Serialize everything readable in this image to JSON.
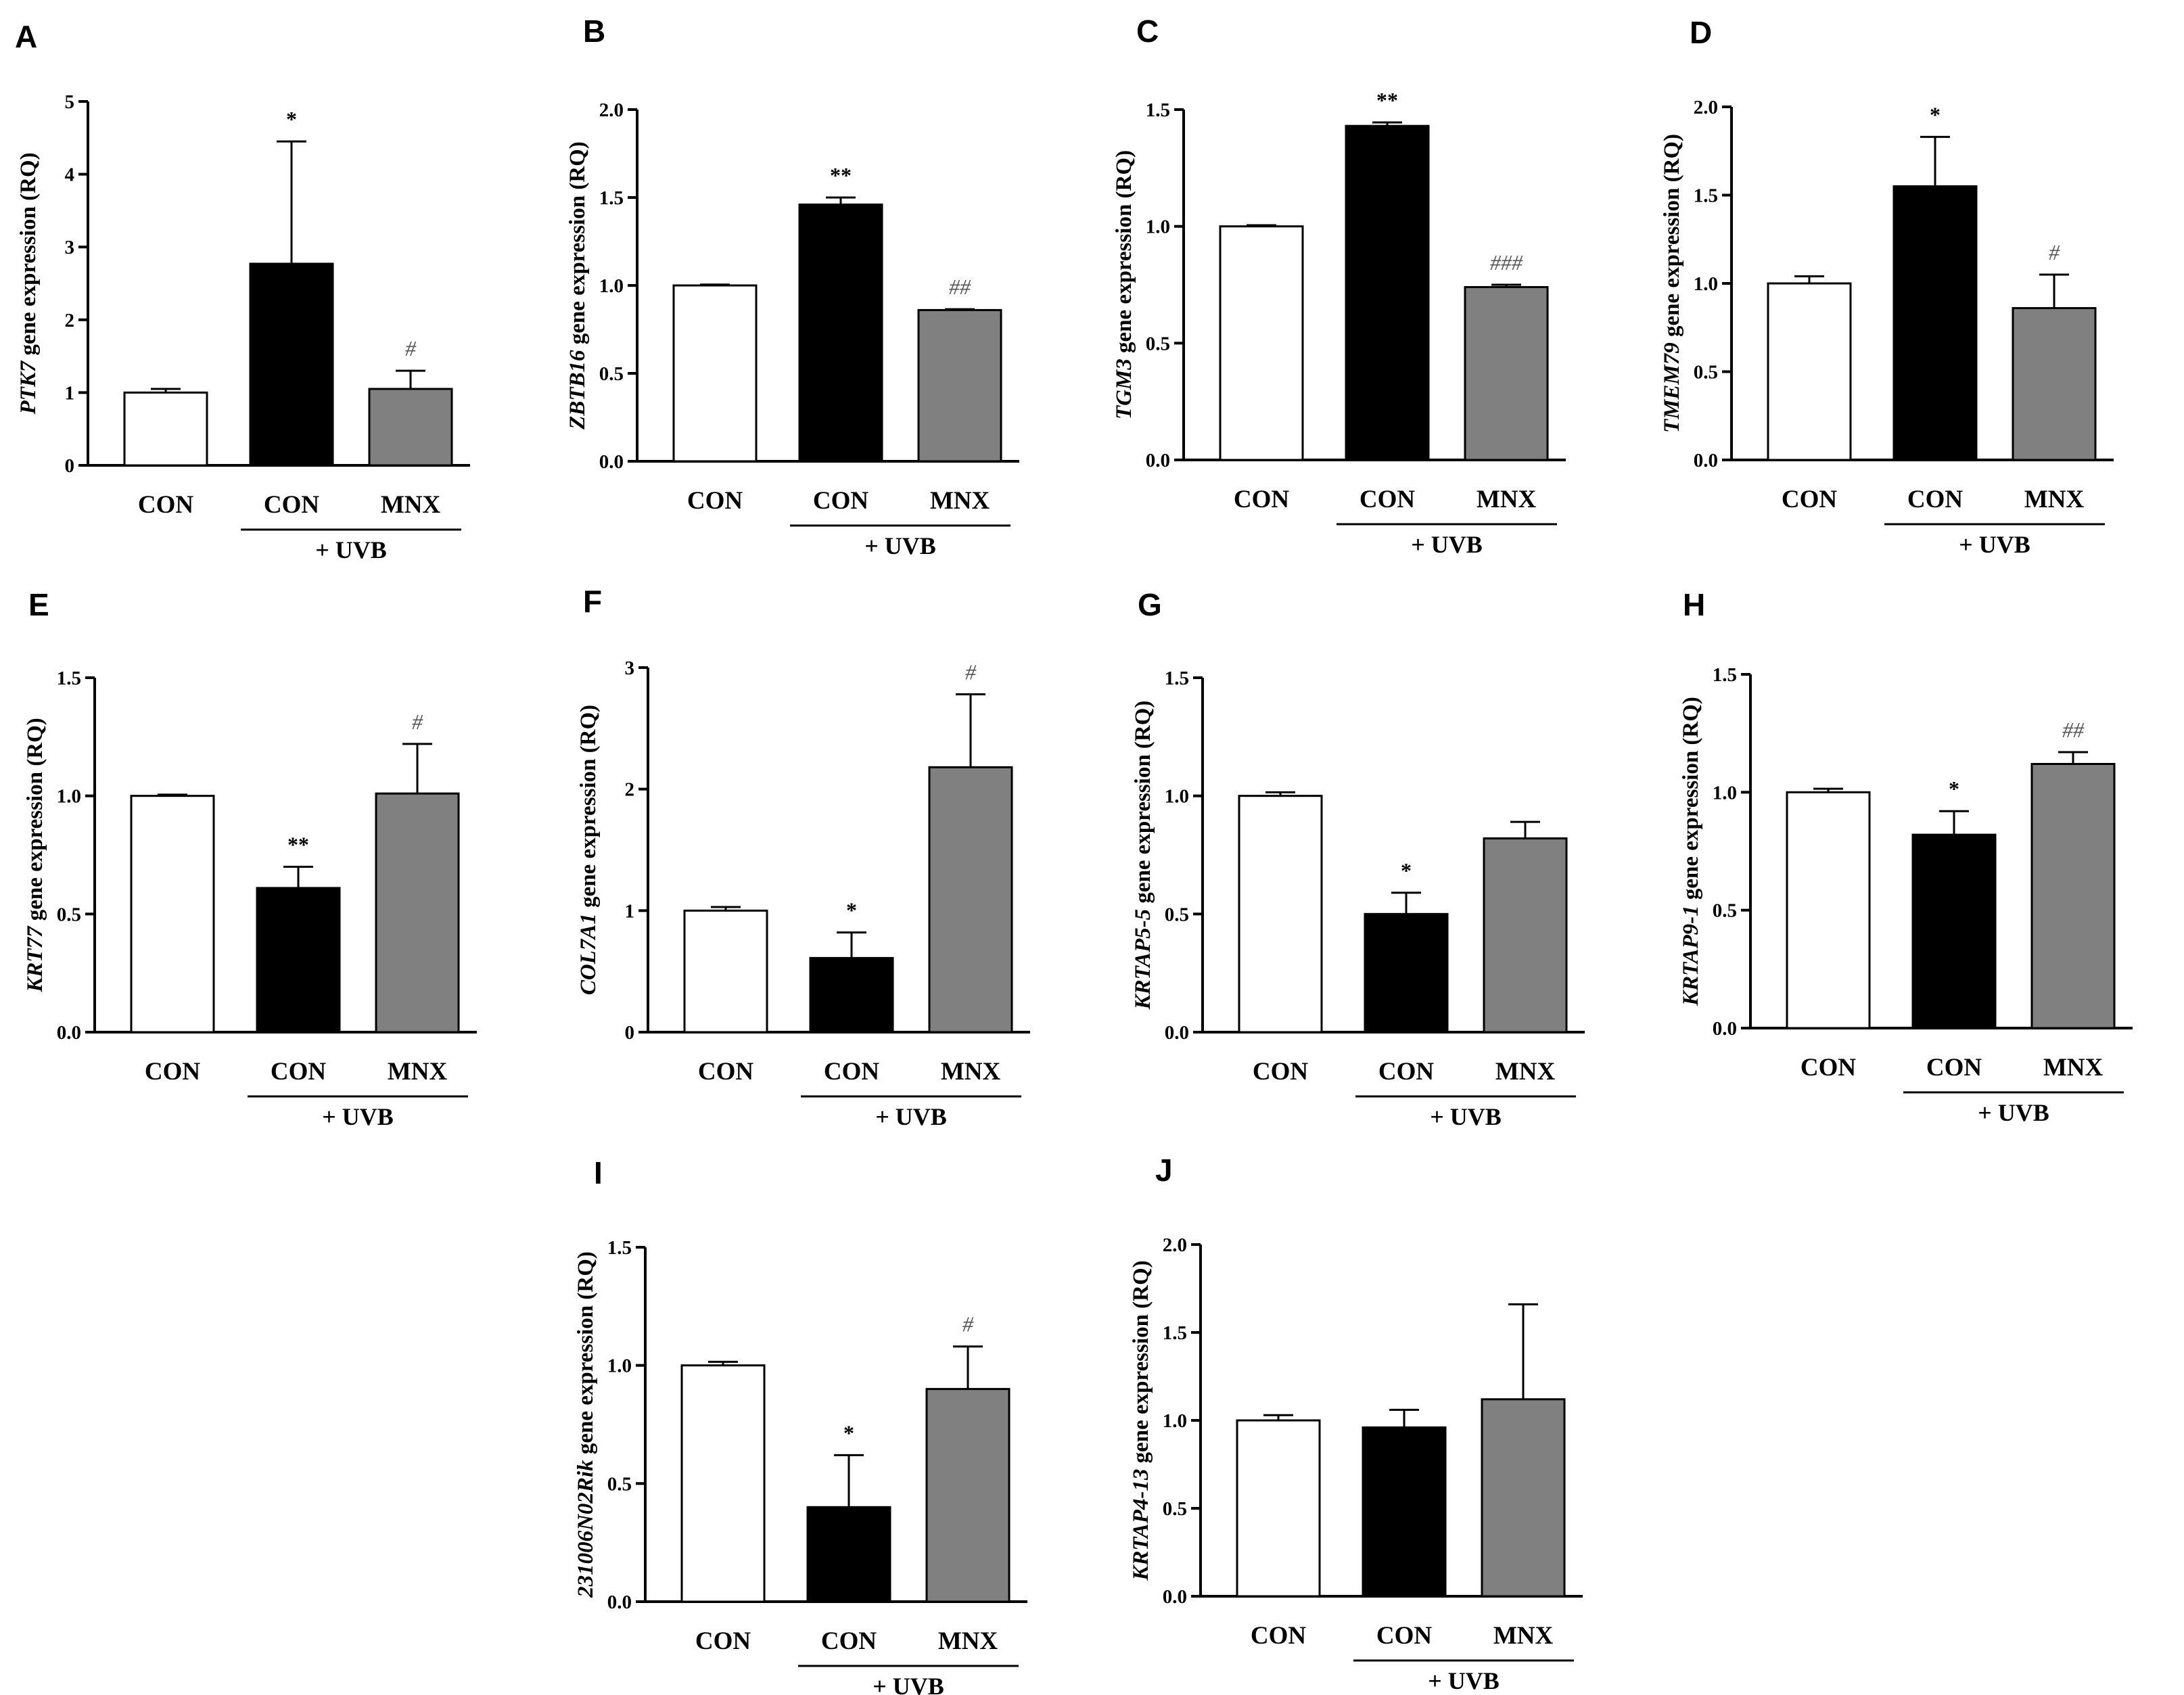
{
  "figure": {
    "group_label": "+ UVB",
    "ylabel_suffix": " gene expression (RQ)"
  },
  "colors": {
    "bar_fills": [
      "#ffffff",
      "#000000",
      "#808080"
    ],
    "axis": "#000000",
    "hash_marker": "#555555"
  },
  "chart_data": [
    {
      "panel": "A",
      "type": "bar",
      "gene": "PTK7",
      "ylabel": "PTK7 gene expression (RQ)",
      "categories": [
        "CON",
        "CON",
        "MNX"
      ],
      "values": [
        1.0,
        2.77,
        1.05
      ],
      "errors": [
        0.05,
        1.68,
        0.25
      ],
      "significance": [
        "",
        "*",
        "#"
      ],
      "ylim": [
        0,
        5
      ],
      "yticks": [
        "0",
        "1",
        "2",
        "3",
        "4",
        "5"
      ],
      "ytick_values": [
        0,
        1,
        2,
        3,
        4,
        5
      ]
    },
    {
      "panel": "B",
      "type": "bar",
      "gene": "ZBTB16",
      "ylabel": "ZBTB16 gene expression (RQ)",
      "categories": [
        "CON",
        "CON",
        "MNX"
      ],
      "values": [
        1.0,
        1.46,
        0.86
      ],
      "errors": [
        0.005,
        0.04,
        0.005
      ],
      "significance": [
        "",
        "**",
        "##"
      ],
      "ylim": [
        0,
        2.0
      ],
      "yticks": [
        "0.0",
        "0.5",
        "1.0",
        "1.5",
        "2.0"
      ],
      "ytick_values": [
        0,
        0.5,
        1.0,
        1.5,
        2.0
      ]
    },
    {
      "panel": "C",
      "type": "bar",
      "gene": "TGM3",
      "ylabel": "TGM3 gene expression (RQ)",
      "categories": [
        "CON",
        "CON",
        "MNX"
      ],
      "values": [
        1.0,
        1.43,
        0.74
      ],
      "errors": [
        0.005,
        0.015,
        0.01
      ],
      "significance": [
        "",
        "**",
        "###"
      ],
      "ylim": [
        0,
        1.5
      ],
      "yticks": [
        "0.0",
        "0.5",
        "1.0",
        "1.5"
      ],
      "ytick_values": [
        0,
        0.5,
        1.0,
        1.5
      ]
    },
    {
      "panel": "D",
      "type": "bar",
      "gene": "TMEM79",
      "ylabel": "TMEM79 gene expression (RQ)",
      "categories": [
        "CON",
        "CON",
        "MNX"
      ],
      "values": [
        1.0,
        1.55,
        0.86
      ],
      "errors": [
        0.04,
        0.28,
        0.19
      ],
      "significance": [
        "",
        "*",
        "#"
      ],
      "ylim": [
        0,
        2.0
      ],
      "yticks": [
        "0.0",
        "0.5",
        "1.0",
        "1.5",
        "2.0"
      ],
      "ytick_values": [
        0,
        0.5,
        1.0,
        1.5,
        2.0
      ]
    },
    {
      "panel": "E",
      "type": "bar",
      "gene": "KRT77",
      "ylabel": "KRT77 gene expression (RQ)",
      "categories": [
        "CON",
        "CON",
        "MNX"
      ],
      "values": [
        1.0,
        0.61,
        1.01
      ],
      "errors": [
        0.005,
        0.09,
        0.21
      ],
      "significance": [
        "",
        "**",
        "#"
      ],
      "ylim": [
        0,
        1.5
      ],
      "yticks": [
        "0.0",
        "0.5",
        "1.0",
        "1.5"
      ],
      "ytick_values": [
        0,
        0.5,
        1.0,
        1.5
      ]
    },
    {
      "panel": "F",
      "type": "bar",
      "gene": "COL7A1",
      "ylabel": "COL7A1 gene expression (RQ)",
      "categories": [
        "CON",
        "CON",
        "MNX"
      ],
      "values": [
        1.0,
        0.61,
        2.18
      ],
      "errors": [
        0.03,
        0.21,
        0.6
      ],
      "significance": [
        "",
        "*",
        "#"
      ],
      "ylim": [
        0,
        3
      ],
      "yticks": [
        "0",
        "1",
        "2",
        "3"
      ],
      "ytick_values": [
        0,
        1,
        2,
        3
      ]
    },
    {
      "panel": "G",
      "type": "bar",
      "gene": "KRTAP5-5",
      "ylabel": "KRTAP5-5 gene expression (RQ)",
      "categories": [
        "CON",
        "CON",
        "MNX"
      ],
      "values": [
        1.0,
        0.5,
        0.82
      ],
      "errors": [
        0.015,
        0.09,
        0.07
      ],
      "significance": [
        "",
        "*",
        ""
      ],
      "ylim": [
        0,
        1.5
      ],
      "yticks": [
        "0.0",
        "0.5",
        "1.0",
        "1.5"
      ],
      "ytick_values": [
        0,
        0.5,
        1.0,
        1.5
      ]
    },
    {
      "panel": "H",
      "type": "bar",
      "gene": "KRTAP9-1",
      "ylabel": "KRTAP9-1 gene expression (RQ)",
      "categories": [
        "CON",
        "CON",
        "MNX"
      ],
      "values": [
        1.0,
        0.82,
        1.12
      ],
      "errors": [
        0.015,
        0.1,
        0.05
      ],
      "significance": [
        "",
        "*",
        "##"
      ],
      "ylim": [
        0,
        1.5
      ],
      "yticks": [
        "0.0",
        "0.5",
        "1.0",
        "1.5"
      ],
      "ytick_values": [
        0,
        0.5,
        1.0,
        1.5
      ]
    },
    {
      "panel": "I",
      "type": "bar",
      "gene": "231006N02Rik",
      "ylabel": "231006N02Rik gene expression (RQ)",
      "categories": [
        "CON",
        "CON",
        "MNX"
      ],
      "values": [
        1.0,
        0.4,
        0.9
      ],
      "errors": [
        0.015,
        0.22,
        0.18
      ],
      "significance": [
        "",
        "*",
        "#"
      ],
      "ylim": [
        0,
        1.5
      ],
      "yticks": [
        "0.0",
        "0.5",
        "1.0",
        "1.5"
      ],
      "ytick_values": [
        0,
        0.5,
        1.0,
        1.5
      ]
    },
    {
      "panel": "J",
      "type": "bar",
      "gene": "KRTAP4-13",
      "ylabel": "KRTAP4-13 gene expression (RQ)",
      "categories": [
        "CON",
        "CON",
        "MNX"
      ],
      "values": [
        1.0,
        0.96,
        1.12
      ],
      "errors": [
        0.03,
        0.1,
        0.54
      ],
      "significance": [
        "",
        "",
        ""
      ],
      "ylim": [
        0,
        2.0
      ],
      "yticks": [
        "0.0",
        "0.5",
        "1.0",
        "1.5",
        "2.0"
      ],
      "ytick_values": [
        0,
        0.5,
        1.0,
        1.5,
        2.0
      ]
    }
  ]
}
